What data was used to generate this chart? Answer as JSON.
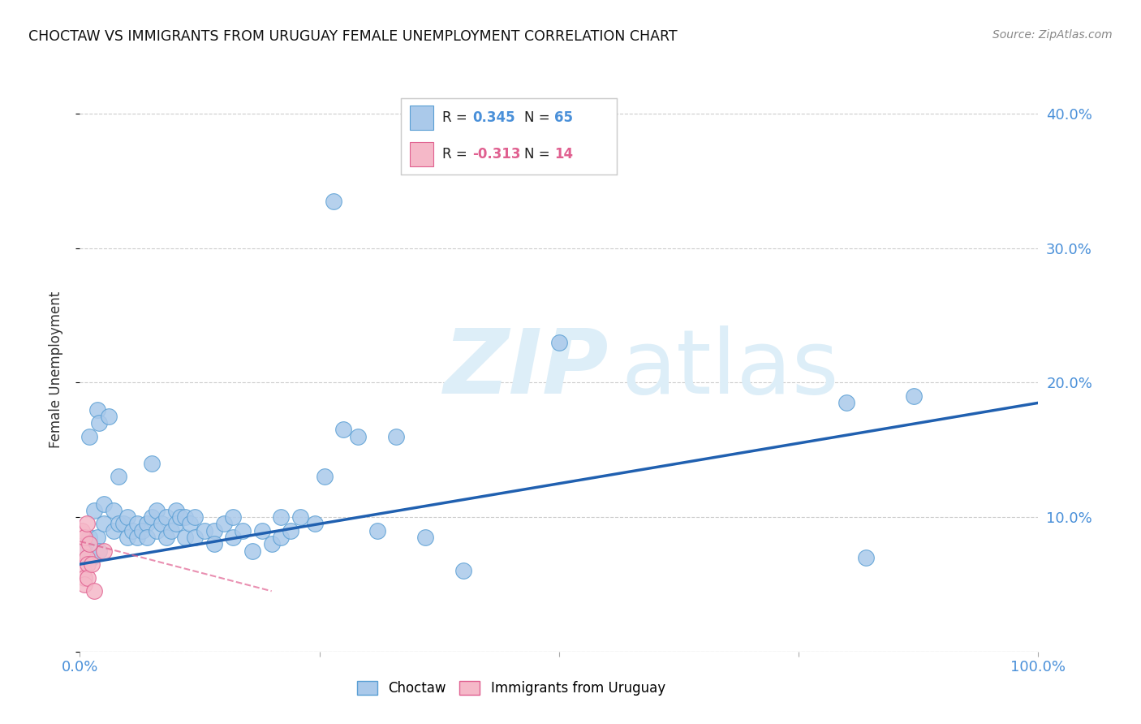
{
  "title": "CHOCTAW VS IMMIGRANTS FROM URUGUAY FEMALE UNEMPLOYMENT CORRELATION CHART",
  "source": "Source: ZipAtlas.com",
  "ylabel": "Female Unemployment",
  "xlim": [
    0,
    1.0
  ],
  "ylim": [
    0,
    0.42
  ],
  "background_color": "#ffffff",
  "choctaw_color": "#aac9ea",
  "choctaw_edge_color": "#5a9fd4",
  "uruguay_color": "#f5b8c8",
  "uruguay_edge_color": "#e06090",
  "trend_blue_color": "#2060b0",
  "trend_pink_color": "#e06090",
  "choctaw_points": [
    [
      0.005,
      0.075
    ],
    [
      0.01,
      0.16
    ],
    [
      0.01,
      0.085
    ],
    [
      0.012,
      0.07
    ],
    [
      0.015,
      0.105
    ],
    [
      0.018,
      0.18
    ],
    [
      0.018,
      0.085
    ],
    [
      0.02,
      0.17
    ],
    [
      0.02,
      0.075
    ],
    [
      0.025,
      0.11
    ],
    [
      0.025,
      0.095
    ],
    [
      0.03,
      0.175
    ],
    [
      0.035,
      0.105
    ],
    [
      0.035,
      0.09
    ],
    [
      0.04,
      0.13
    ],
    [
      0.04,
      0.095
    ],
    [
      0.045,
      0.095
    ],
    [
      0.05,
      0.1
    ],
    [
      0.05,
      0.085
    ],
    [
      0.055,
      0.09
    ],
    [
      0.06,
      0.095
    ],
    [
      0.06,
      0.085
    ],
    [
      0.065,
      0.09
    ],
    [
      0.07,
      0.095
    ],
    [
      0.07,
      0.085
    ],
    [
      0.075,
      0.14
    ],
    [
      0.075,
      0.1
    ],
    [
      0.08,
      0.105
    ],
    [
      0.08,
      0.09
    ],
    [
      0.085,
      0.095
    ],
    [
      0.09,
      0.1
    ],
    [
      0.09,
      0.085
    ],
    [
      0.095,
      0.09
    ],
    [
      0.1,
      0.105
    ],
    [
      0.1,
      0.095
    ],
    [
      0.105,
      0.1
    ],
    [
      0.11,
      0.1
    ],
    [
      0.11,
      0.085
    ],
    [
      0.115,
      0.095
    ],
    [
      0.12,
      0.1
    ],
    [
      0.12,
      0.085
    ],
    [
      0.13,
      0.09
    ],
    [
      0.14,
      0.09
    ],
    [
      0.14,
      0.08
    ],
    [
      0.15,
      0.095
    ],
    [
      0.16,
      0.1
    ],
    [
      0.16,
      0.085
    ],
    [
      0.17,
      0.09
    ],
    [
      0.18,
      0.075
    ],
    [
      0.19,
      0.09
    ],
    [
      0.2,
      0.08
    ],
    [
      0.21,
      0.1
    ],
    [
      0.21,
      0.085
    ],
    [
      0.22,
      0.09
    ],
    [
      0.23,
      0.1
    ],
    [
      0.245,
      0.095
    ],
    [
      0.255,
      0.13
    ],
    [
      0.265,
      0.335
    ],
    [
      0.275,
      0.165
    ],
    [
      0.29,
      0.16
    ],
    [
      0.31,
      0.09
    ],
    [
      0.33,
      0.16
    ],
    [
      0.36,
      0.085
    ],
    [
      0.4,
      0.06
    ],
    [
      0.5,
      0.23
    ],
    [
      0.8,
      0.185
    ],
    [
      0.82,
      0.07
    ],
    [
      0.87,
      0.19
    ]
  ],
  "uruguay_points": [
    [
      0.002,
      0.09
    ],
    [
      0.003,
      0.075
    ],
    [
      0.004,
      0.06
    ],
    [
      0.005,
      0.085
    ],
    [
      0.005,
      0.055
    ],
    [
      0.005,
      0.05
    ],
    [
      0.007,
      0.095
    ],
    [
      0.007,
      0.07
    ],
    [
      0.008,
      0.065
    ],
    [
      0.008,
      0.055
    ],
    [
      0.01,
      0.08
    ],
    [
      0.012,
      0.065
    ],
    [
      0.015,
      0.045
    ],
    [
      0.025,
      0.075
    ]
  ],
  "trend_blue_x0": 0.0,
  "trend_blue_y0": 0.065,
  "trend_blue_x1": 1.0,
  "trend_blue_y1": 0.185,
  "trend_pink_x0": 0.0,
  "trend_pink_y0": 0.082,
  "trend_pink_x1": 0.2,
  "trend_pink_y1": 0.045
}
